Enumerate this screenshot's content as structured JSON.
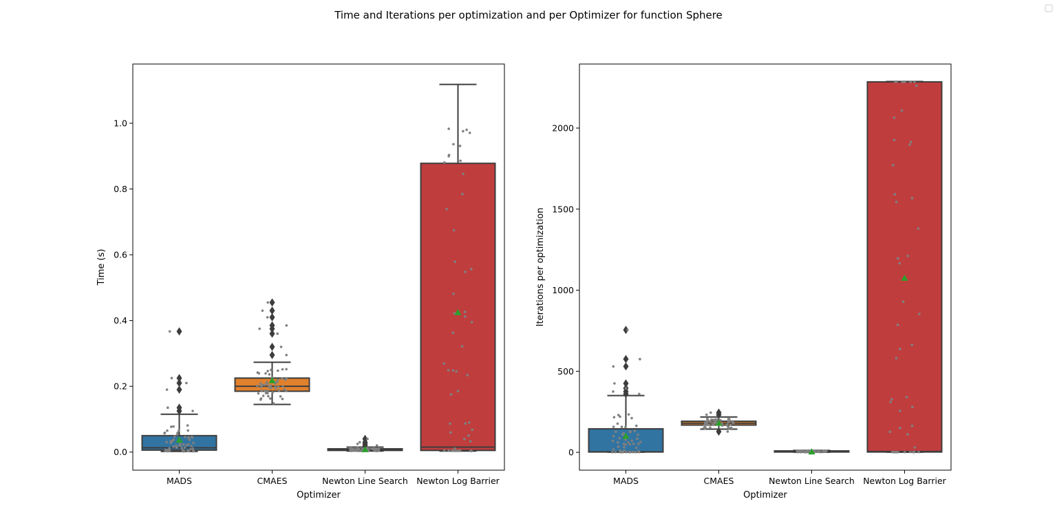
{
  "figure": {
    "title": "Time and Iterations per optimization and per Optimizer for function Sphere"
  },
  "chart_data": [
    {
      "type": "box",
      "title": "",
      "xlabel": "Optimizer",
      "ylabel": "Time (s)",
      "categories": [
        "MADS",
        "CMAES",
        "Newton Line Search",
        "Newton Log Barrier"
      ],
      "ylim": [
        -0.055,
        1.18
      ],
      "yticks": [
        0.0,
        0.2,
        0.4,
        0.6,
        0.8,
        1.0
      ],
      "ytick_labels": [
        "0.0",
        "0.2",
        "0.4",
        "0.6",
        "0.8",
        "1.0"
      ],
      "colors": [
        "#3274a1",
        "#e1812c",
        "#3a923a",
        "#c03d3e"
      ],
      "boxes": [
        {
          "category": "MADS",
          "q1": 0.006,
          "median": 0.013,
          "q3": 0.05,
          "whisker_low": 0.002,
          "whisker_high": 0.115,
          "mean": 0.037,
          "fliers": [
            0.367,
            0.225,
            0.21,
            0.19,
            0.135,
            0.125
          ]
        },
        {
          "category": "CMAES",
          "q1": 0.185,
          "median": 0.2,
          "q3": 0.225,
          "whisker_low": 0.145,
          "whisker_high": 0.273,
          "mean": 0.218,
          "fliers": [
            0.455,
            0.43,
            0.41,
            0.385,
            0.375,
            0.36,
            0.32,
            0.295
          ]
        },
        {
          "category": "Newton Line Search",
          "q1": 0.005,
          "median": 0.008,
          "q3": 0.01,
          "whisker_low": 0.003,
          "whisker_high": 0.015,
          "mean": 0.008,
          "fliers": [
            0.04,
            0.03,
            0.025,
            0.02
          ]
        },
        {
          "category": "Newton Log Barrier",
          "q1": 0.005,
          "median": 0.015,
          "q3": 0.878,
          "whisker_low": 0.003,
          "whisker_high": 1.118,
          "mean": 0.425,
          "fliers": []
        }
      ]
    },
    {
      "type": "box",
      "title": "",
      "xlabel": "Optimizer",
      "ylabel": "Iterations per optimization",
      "categories": [
        "MADS",
        "CMAES",
        "Newton Line Search",
        "Newton Log Barrier"
      ],
      "ylim": [
        -110,
        2395
      ],
      "yticks": [
        0,
        500,
        1000,
        1500,
        2000
      ],
      "ytick_labels": [
        "0",
        "500",
        "1000",
        "1500",
        "2000"
      ],
      "colors": [
        "#3274a1",
        "#e1812c",
        "#3a923a",
        "#c03d3e"
      ],
      "boxes": [
        {
          "category": "MADS",
          "q1": 2,
          "median": 3,
          "q3": 145,
          "whisker_low": 1,
          "whisker_high": 350,
          "mean": 100,
          "fliers": [
            755,
            575,
            530,
            425,
            395,
            375,
            360
          ]
        },
        {
          "category": "CMAES",
          "q1": 168,
          "median": 180,
          "q3": 192,
          "whisker_low": 143,
          "whisker_high": 218,
          "mean": 181,
          "fliers": [
            245,
            232,
            128
          ]
        },
        {
          "category": "Newton Line Search",
          "q1": 2,
          "median": 4,
          "q3": 9,
          "whisker_low": 1,
          "whisker_high": 12,
          "mean": 4,
          "fliers": []
        },
        {
          "category": "Newton Log Barrier",
          "q1": 2,
          "median": 5,
          "q3": 2285,
          "whisker_low": 1,
          "whisker_high": 2287,
          "mean": 1075,
          "fliers": []
        }
      ]
    }
  ]
}
